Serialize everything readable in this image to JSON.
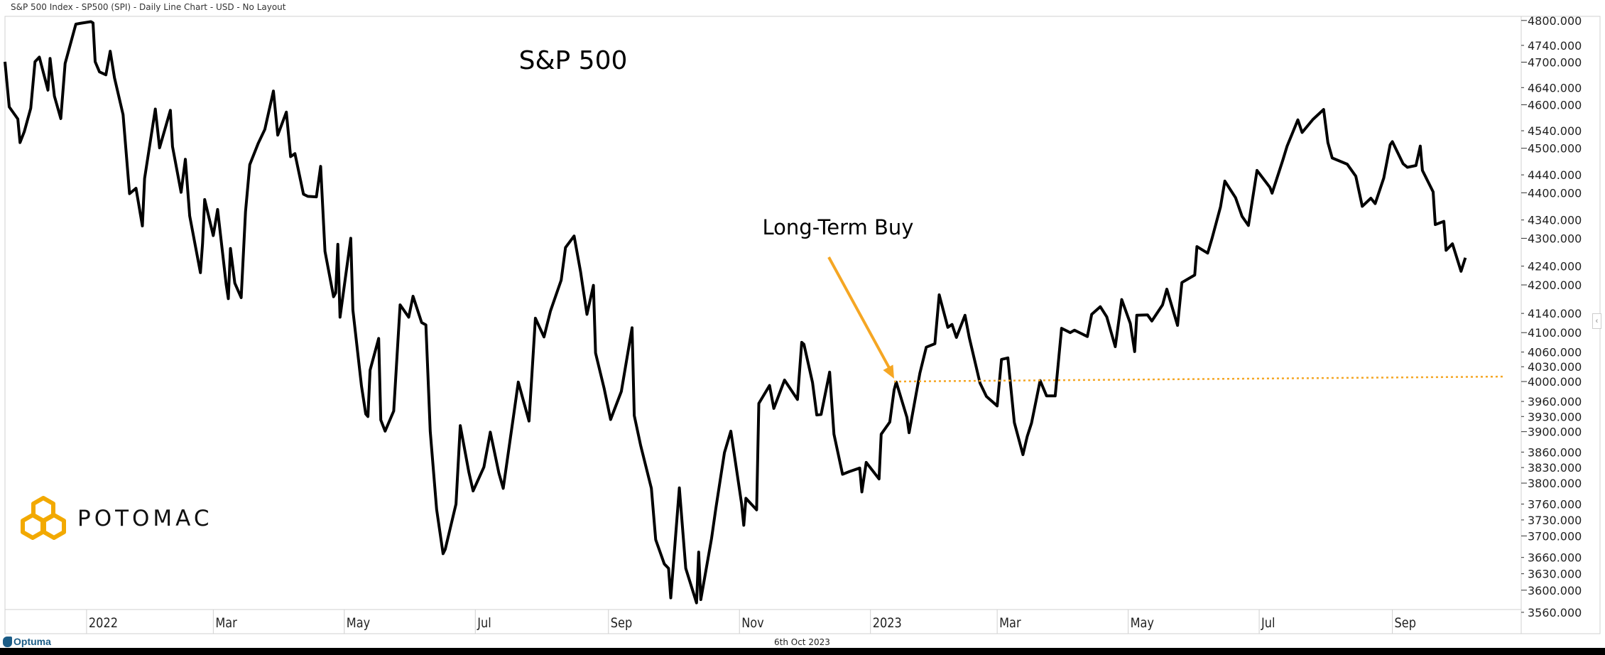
{
  "header": {
    "title": "S&P 500 Index  - SP500 (SPI) - Daily Line Chart - USD - No Layout"
  },
  "footer": {
    "date": "6th Oct 2023",
    "brand": "Optuma"
  },
  "logo": {
    "text": "POTOMAC",
    "color": "#F2A900"
  },
  "colors": {
    "line": "#000000",
    "annotation": "#F5A623",
    "grid": "#d0d0d0"
  },
  "chart_data": {
    "type": "line",
    "title": "S&P 500",
    "y_scale": "log",
    "ylim": [
      3565,
      4810
    ],
    "xlim": [
      "2021-11-24",
      "2023-10-31"
    ],
    "grid": false,
    "y_ticks": [
      4800,
      4740,
      4700,
      4640,
      4600,
      4540,
      4500,
      4440,
      4400,
      4340,
      4300,
      4240,
      4200,
      4140,
      4100,
      4060,
      4030,
      4000,
      3960,
      3930,
      3900,
      3860,
      3830,
      3800,
      3760,
      3730,
      3700,
      3660,
      3630,
      3600,
      3560
    ],
    "y_tick_format_decimals": 3,
    "x_ticks": [
      {
        "date": "2022-01-01",
        "label": "2022"
      },
      {
        "date": "2022-03-01",
        "label": "Mar"
      },
      {
        "date": "2022-05-01",
        "label": "May"
      },
      {
        "date": "2022-07-01",
        "label": "Jul"
      },
      {
        "date": "2022-09-01",
        "label": "Sep"
      },
      {
        "date": "2022-11-01",
        "label": "Nov"
      },
      {
        "date": "2023-01-01",
        "label": "2023"
      },
      {
        "date": "2023-03-01",
        "label": "Mar"
      },
      {
        "date": "2023-05-01",
        "label": "May"
      },
      {
        "date": "2023-07-01",
        "label": "Jul"
      },
      {
        "date": "2023-09-01",
        "label": "Sep"
      }
    ],
    "annotations": {
      "label": "Long-Term Buy",
      "arrow_target": {
        "date": "2023-01-12",
        "value": 4000
      },
      "dotted_line": {
        "start": {
          "date": "2023-01-12",
          "value": 4000
        },
        "end": {
          "date": "2023-10-23",
          "value": 4010
        }
      }
    },
    "series": [
      {
        "x": [
          "2021-11-24",
          "2021-11-26",
          "2021-11-30",
          "2021-12-01",
          "2021-12-03",
          "2021-12-06",
          "2021-12-08",
          "2021-12-10",
          "2021-12-14",
          "2021-12-15",
          "2021-12-17",
          "2021-12-20",
          "2021-12-22",
          "2021-12-27",
          "2021-12-29",
          "2022-01-03",
          "2022-01-04",
          "2022-01-05",
          "2022-01-07",
          "2022-01-10",
          "2022-01-12",
          "2022-01-14",
          "2022-01-18",
          "2022-01-21",
          "2022-01-24",
          "2022-01-27",
          "2022-01-28",
          "2022-02-02",
          "2022-02-04",
          "2022-02-09",
          "2022-02-10",
          "2022-02-14",
          "2022-02-16",
          "2022-02-18",
          "2022-02-23",
          "2022-02-24",
          "2022-02-25",
          "2022-03-01",
          "2022-03-03",
          "2022-03-07",
          "2022-03-08",
          "2022-03-09",
          "2022-03-11",
          "2022-03-14",
          "2022-03-16",
          "2022-03-18",
          "2022-03-22",
          "2022-03-25",
          "2022-03-29",
          "2022-03-31",
          "2022-04-04",
          "2022-04-06",
          "2022-04-08",
          "2022-04-12",
          "2022-04-14",
          "2022-04-18",
          "2022-04-20",
          "2022-04-22",
          "2022-04-26",
          "2022-04-27",
          "2022-04-28",
          "2022-04-29",
          "2022-05-04",
          "2022-05-05",
          "2022-05-09",
          "2022-05-11",
          "2022-05-12",
          "2022-05-13",
          "2022-05-17",
          "2022-05-18",
          "2022-05-20",
          "2022-05-24",
          "2022-05-27",
          "2022-05-31",
          "2022-06-02",
          "2022-06-06",
          "2022-06-08",
          "2022-06-10",
          "2022-06-13",
          "2022-06-16",
          "2022-06-17",
          "2022-06-22",
          "2022-06-24",
          "2022-06-28",
          "2022-06-30",
          "2022-07-05",
          "2022-07-08",
          "2022-07-12",
          "2022-07-14",
          "2022-07-19",
          "2022-07-21",
          "2022-07-26",
          "2022-07-29",
          "2022-08-02",
          "2022-08-05",
          "2022-08-10",
          "2022-08-12",
          "2022-08-16",
          "2022-08-19",
          "2022-08-22",
          "2022-08-25",
          "2022-08-26",
          "2022-08-30",
          "2022-09-02",
          "2022-09-07",
          "2022-09-12",
          "2022-09-13",
          "2022-09-16",
          "2022-09-21",
          "2022-09-23",
          "2022-09-27",
          "2022-09-29",
          "2022-09-30",
          "2022-10-04",
          "2022-10-07",
          "2022-10-12",
          "2022-10-13",
          "2022-10-14",
          "2022-10-19",
          "2022-10-21",
          "2022-10-25",
          "2022-10-28",
          "2022-11-02",
          "2022-11-03",
          "2022-11-04",
          "2022-11-09",
          "2022-11-10",
          "2022-11-15",
          "2022-11-17",
          "2022-11-22",
          "2022-11-28",
          "2022-11-30",
          "2022-12-01",
          "2022-12-05",
          "2022-12-07",
          "2022-12-09",
          "2022-12-13",
          "2022-12-15",
          "2022-12-19",
          "2022-12-22",
          "2022-12-27",
          "2022-12-28",
          "2022-12-30",
          "2023-01-05",
          "2023-01-06",
          "2023-01-10",
          "2023-01-12",
          "2023-01-13",
          "2023-01-18",
          "2023-01-19",
          "2023-01-24",
          "2023-01-27",
          "2023-01-31",
          "2023-02-02",
          "2023-02-06",
          "2023-02-08",
          "2023-02-10",
          "2023-02-14",
          "2023-02-16",
          "2023-02-21",
          "2023-02-24",
          "2023-03-01",
          "2023-03-03",
          "2023-03-06",
          "2023-03-09",
          "2023-03-13",
          "2023-03-15",
          "2023-03-17",
          "2023-03-21",
          "2023-03-24",
          "2023-03-28",
          "2023-03-31",
          "2023-04-04",
          "2023-04-06",
          "2023-04-12",
          "2023-04-14",
          "2023-04-18",
          "2023-04-21",
          "2023-04-25",
          "2023-04-28",
          "2023-05-02",
          "2023-05-04",
          "2023-05-05",
          "2023-05-10",
          "2023-05-12",
          "2023-05-17",
          "2023-05-19",
          "2023-05-24",
          "2023-05-26",
          "2023-06-01",
          "2023-06-02",
          "2023-06-07",
          "2023-06-09",
          "2023-06-13",
          "2023-06-15",
          "2023-06-20",
          "2023-06-23",
          "2023-06-26",
          "2023-06-30",
          "2023-07-06",
          "2023-07-07",
          "2023-07-12",
          "2023-07-14",
          "2023-07-19",
          "2023-07-21",
          "2023-07-26",
          "2023-07-31",
          "2023-08-02",
          "2023-08-04",
          "2023-08-09",
          "2023-08-11",
          "2023-08-15",
          "2023-08-18",
          "2023-08-22",
          "2023-08-24",
          "2023-08-28",
          "2023-08-31",
          "2023-09-01",
          "2023-09-06",
          "2023-09-08",
          "2023-09-12",
          "2023-09-14",
          "2023-09-15",
          "2023-09-20",
          "2023-09-21",
          "2023-09-25",
          "2023-09-26",
          "2023-09-29",
          "2023-10-03",
          "2023-10-05"
        ],
        "values": [
          4701,
          4595,
          4567,
          4513,
          4538,
          4592,
          4701,
          4712,
          4634,
          4709,
          4620,
          4568,
          4697,
          4791,
          4793,
          4797,
          4794,
          4701,
          4677,
          4670,
          4726,
          4663,
          4577,
          4398,
          4410,
          4327,
          4432,
          4590,
          4501,
          4587,
          4504,
          4401,
          4475,
          4349,
          4226,
          4288,
          4385,
          4306,
          4363,
          4201,
          4171,
          4278,
          4204,
          4173,
          4358,
          4463,
          4512,
          4543,
          4632,
          4530,
          4583,
          4481,
          4488,
          4397,
          4392,
          4391,
          4459,
          4272,
          4175,
          4183,
          4287,
          4132,
          4300,
          4147,
          3991,
          3935,
          3930,
          4023,
          4088,
          3923,
          3901,
          3941,
          4158,
          4132,
          4176,
          4121,
          4116,
          3901,
          3750,
          3667,
          3675,
          3760,
          3912,
          3821,
          3785,
          3831,
          3899,
          3819,
          3790,
          3937,
          3999,
          3921,
          4130,
          4091,
          4145,
          4210,
          4280,
          4305,
          4228,
          4138,
          4199,
          4058,
          3986,
          3924,
          3980,
          4110,
          3932,
          3873,
          3790,
          3693,
          3648,
          3640,
          3586,
          3791,
          3640,
          3577,
          3670,
          3583,
          3695,
          3752,
          3859,
          3901,
          3760,
          3720,
          3771,
          3749,
          3956,
          3992,
          3946,
          4003,
          3964,
          4080,
          4076,
          3998,
          3933,
          3934,
          4019,
          3895,
          3817,
          3822,
          3829,
          3783,
          3840,
          3808,
          3895,
          3919,
          3983,
          3999,
          3928,
          3898,
          4017,
          4070,
          4077,
          4179,
          4111,
          4117,
          4090,
          4136,
          4090,
          3997,
          3970,
          3951,
          4045,
          4048,
          3918,
          3855,
          3891,
          3917,
          4002,
          3971,
          3971,
          4109,
          4100,
          4105,
          4092,
          4138,
          4154,
          4133,
          4071,
          4169,
          4119,
          4061,
          4136,
          4137,
          4124,
          4158,
          4191,
          4115,
          4205,
          4221,
          4282,
          4268,
          4299,
          4369,
          4426,
          4389,
          4348,
          4328,
          4450,
          4412,
          4399,
          4473,
          4505,
          4565,
          4536,
          4566,
          4589,
          4513,
          4478,
          4468,
          4464,
          4437,
          4370,
          4388,
          4376,
          4433,
          4508,
          4515,
          4465,
          4457,
          4461,
          4505,
          4450,
          4402,
          4330,
          4337,
          4274,
          4288,
          4229,
          4258
        ]
      }
    ]
  }
}
